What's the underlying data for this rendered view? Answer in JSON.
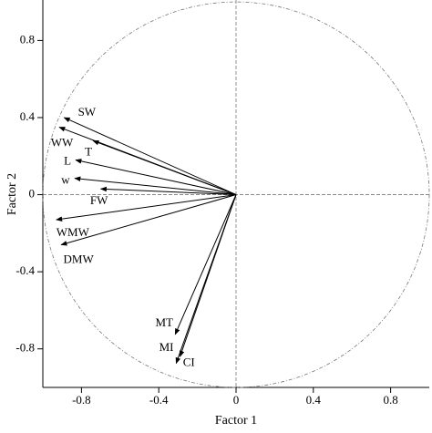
{
  "chart_data": {
    "type": "vector",
    "xlabel": "Factor 1",
    "ylabel": "Factor 2",
    "categories": [
      "SW",
      "WW",
      "T",
      "L",
      "w",
      "FW",
      "WMW",
      "DMW",
      "MT",
      "MI",
      "CI"
    ],
    "x": [
      -0.89,
      -0.915,
      -0.74,
      -0.83,
      -0.835,
      -0.7,
      -0.93,
      -0.905,
      -0.315,
      -0.29,
      -0.31
    ],
    "y": [
      0.4,
      0.35,
      0.28,
      0.18,
      0.085,
      0.03,
      -0.13,
      -0.26,
      -0.725,
      -0.84,
      -0.875
    ],
    "color": "#000000",
    "xlim": [
      -1,
      1
    ],
    "ylim": [
      -1,
      1.01
    ],
    "xticks": [
      -0.8,
      -0.4,
      0,
      0.4,
      0.8
    ],
    "yticks": [
      -0.8,
      -0.4,
      0,
      0.4,
      0.8
    ]
  }
}
